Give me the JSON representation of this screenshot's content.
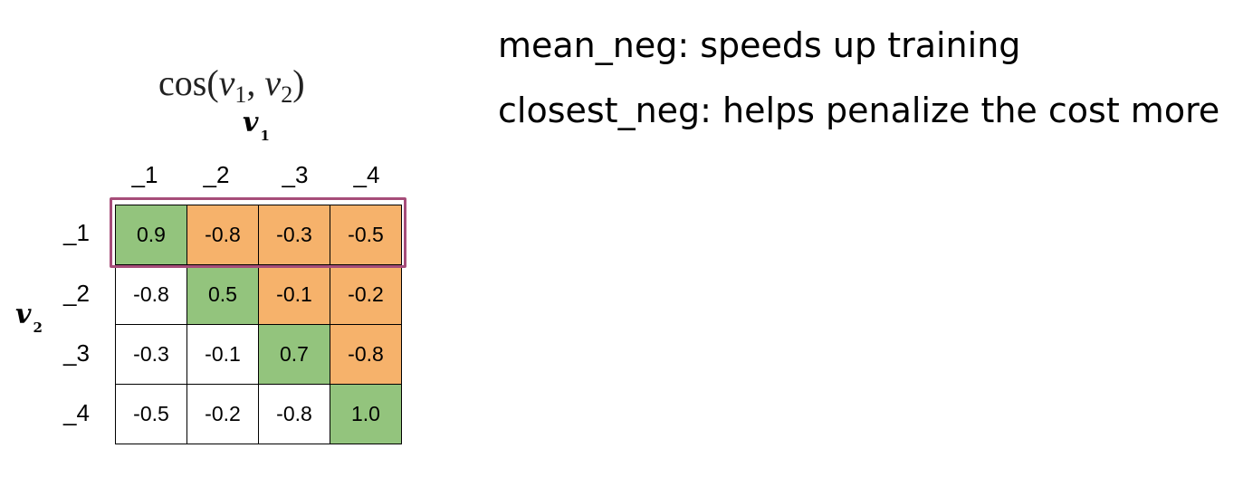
{
  "formula": {
    "fn": "cos",
    "open": "(",
    "a": "v",
    "a_sub": "1",
    "sep": ", ",
    "b": "v",
    "b_sub": "2",
    "close": ")"
  },
  "axis_top": {
    "var": "v",
    "sub": "1"
  },
  "axis_left": {
    "var": "v",
    "sub": "2"
  },
  "columns": [
    "_1",
    "_2",
    "_3",
    "_4"
  ],
  "rows": [
    "_1",
    "_2",
    "_3",
    "_4"
  ],
  "matrix": [
    [
      "0.9",
      "-0.8",
      "-0.3",
      "-0.5"
    ],
    [
      "-0.8",
      "0.5",
      "-0.1",
      "-0.2"
    ],
    [
      "-0.3",
      "-0.1",
      "0.7",
      "-0.8"
    ],
    [
      "-0.5",
      "-0.2",
      "-0.8",
      "1.0"
    ]
  ],
  "colors": {
    "diagonal": "#93c47d",
    "upper": "#f6b26b",
    "lower": "#ffffff",
    "highlight": "#a64d79"
  },
  "notes": [
    "mean_neg: speeds up training",
    "closest_neg: helps penalize the cost more"
  ]
}
